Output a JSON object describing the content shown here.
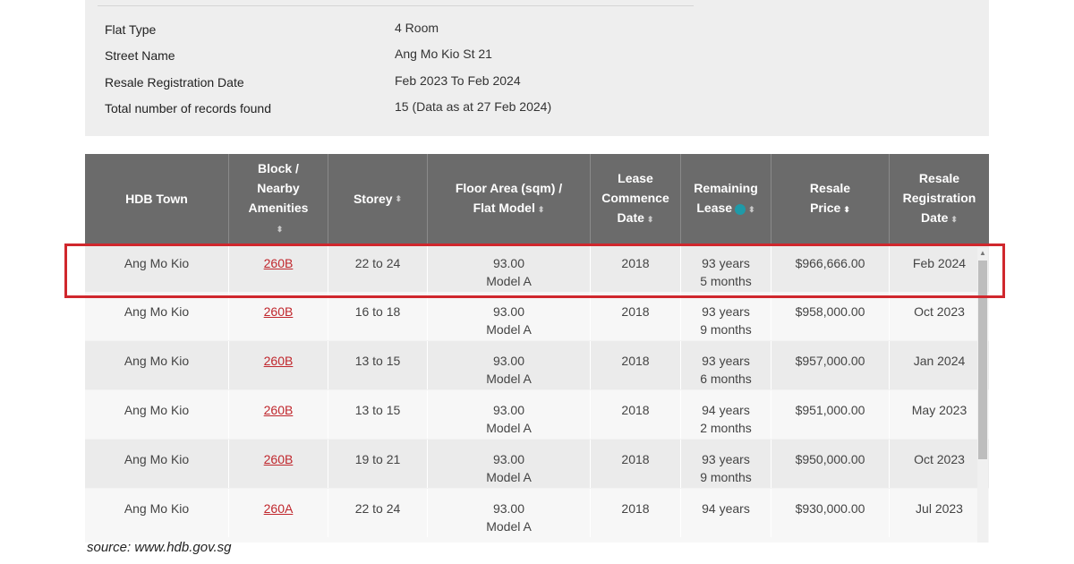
{
  "info": {
    "rows": [
      {
        "label": "Flat Type",
        "value": "4 Room"
      },
      {
        "label": "Street Name",
        "value": "Ang Mo Kio St 21"
      },
      {
        "label": "Resale Registration Date",
        "value": "Feb 2023 To Feb 2024"
      },
      {
        "label": "Total number of records found",
        "value": "15 (Data as at 27 Feb 2024)"
      }
    ]
  },
  "table": {
    "headers": {
      "town": "HDB Town",
      "block_l1": "Block /",
      "block_l2": "Nearby",
      "block_l3": "Amenities",
      "storey": "Storey",
      "floor_l1": "Floor Area (sqm) /",
      "floor_l2": "Flat Model",
      "lease_l1": "Lease",
      "lease_l2": "Commence",
      "lease_l3": "Date",
      "remaining_l1": "Remaining",
      "remaining_l2": "Lease",
      "price_l1": "Resale",
      "price_l2": "Price",
      "reg_l1": "Resale",
      "reg_l2": "Registration",
      "reg_l3": "Date"
    },
    "help_glyph": "?",
    "rows": [
      {
        "town": "Ang Mo Kio",
        "block": "260B",
        "storey": "22 to 24",
        "area": "93.00",
        "model": "Model A",
        "lease": "2018",
        "rem1": "93 years",
        "rem2": "5 months",
        "price": "$966,666.00",
        "date": "Feb 2024"
      },
      {
        "town": "Ang Mo Kio",
        "block": "260B",
        "storey": "16 to 18",
        "area": "93.00",
        "model": "Model A",
        "lease": "2018",
        "rem1": "93 years",
        "rem2": "9 months",
        "price": "$958,000.00",
        "date": "Oct 2023"
      },
      {
        "town": "Ang Mo Kio",
        "block": "260B",
        "storey": "13 to 15",
        "area": "93.00",
        "model": "Model A",
        "lease": "2018",
        "rem1": "93 years",
        "rem2": "6 months",
        "price": "$957,000.00",
        "date": "Jan 2024"
      },
      {
        "town": "Ang Mo Kio",
        "block": "260B",
        "storey": "13 to 15",
        "area": "93.00",
        "model": "Model A",
        "lease": "2018",
        "rem1": "94 years",
        "rem2": "2 months",
        "price": "$951,000.00",
        "date": "May 2023"
      },
      {
        "town": "Ang Mo Kio",
        "block": "260B",
        "storey": "19 to 21",
        "area": "93.00",
        "model": "Model A",
        "lease": "2018",
        "rem1": "93 years",
        "rem2": "9 months",
        "price": "$950,000.00",
        "date": "Oct 2023"
      },
      {
        "town": "Ang Mo Kio",
        "block": "260A",
        "storey": "22 to 24",
        "area": "93.00",
        "model": "Model A",
        "lease": "2018",
        "rem1": "94 years",
        "rem2": "",
        "price": "$930,000.00",
        "date": "Jul 2023"
      }
    ]
  },
  "source": "source: www.hdb.gov.sg",
  "colors": {
    "header_bg": "#6b6b6b",
    "link": "#c0272d",
    "highlight": "#d0272d",
    "help_icon": "#1f9aa8"
  }
}
